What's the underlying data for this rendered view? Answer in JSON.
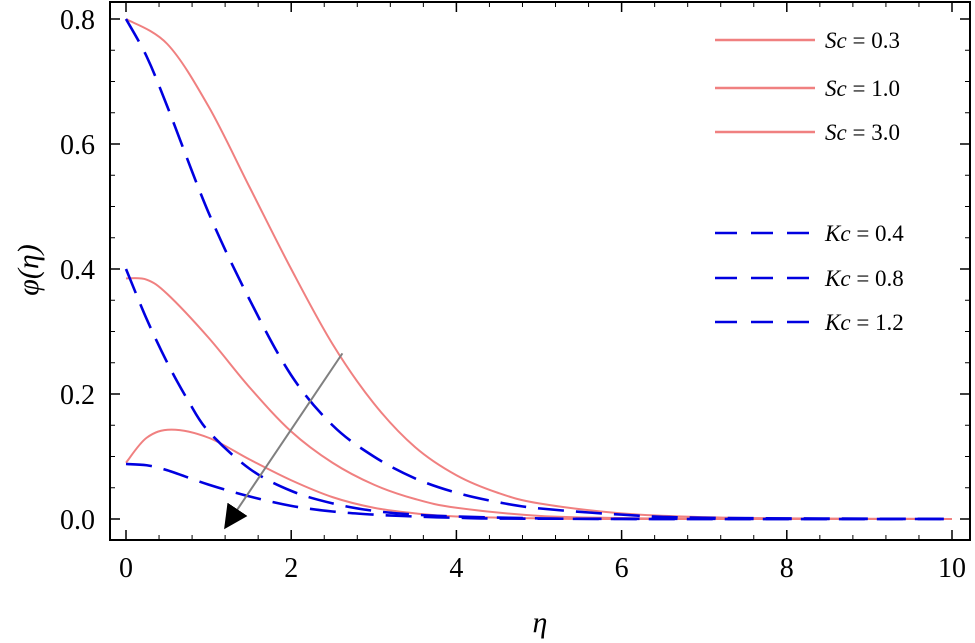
{
  "chart_data": {
    "type": "line",
    "xlabel": "η",
    "ylabel": "φ(η)",
    "xlim": [
      0,
      10
    ],
    "ylim": [
      -0.03,
      0.81
    ],
    "xticks": [
      "0",
      "2",
      "4",
      "6",
      "8",
      "10"
    ],
    "yticks": [
      "0.0",
      "0.2",
      "0.4",
      "0.6",
      "0.8"
    ],
    "grid": false,
    "legend_position": "top-right",
    "series": [
      {
        "name": "Sc = 0.3",
        "group": "Sc",
        "style": "solid",
        "color": "#f08080",
        "x": [
          0,
          0.5,
          1,
          1.5,
          2,
          2.5,
          3,
          3.5,
          4,
          4.5,
          5,
          6,
          7,
          8,
          10
        ],
        "y": [
          0.8,
          0.76,
          0.66,
          0.53,
          0.4,
          0.28,
          0.185,
          0.115,
          0.07,
          0.042,
          0.025,
          0.009,
          0.003,
          0.001,
          0.0
        ]
      },
      {
        "name": "Sc = 1.0",
        "group": "Sc",
        "style": "solid",
        "color": "#f08080",
        "x": [
          0,
          0.25,
          0.5,
          1,
          1.5,
          2,
          2.5,
          3,
          3.5,
          4,
          5,
          6,
          7,
          10
        ],
        "y": [
          0.385,
          0.383,
          0.36,
          0.29,
          0.21,
          0.14,
          0.09,
          0.055,
          0.032,
          0.018,
          0.005,
          0.0015,
          0.0005,
          0.0
        ]
      },
      {
        "name": "Sc = 3.0",
        "group": "Sc",
        "style": "solid",
        "color": "#f08080",
        "x": [
          0,
          0.25,
          0.55,
          1,
          1.5,
          2,
          2.5,
          3,
          3.5,
          4,
          5,
          6,
          10
        ],
        "y": [
          0.09,
          0.13,
          0.143,
          0.13,
          0.095,
          0.062,
          0.035,
          0.018,
          0.009,
          0.004,
          0.001,
          0.0,
          0.0
        ]
      },
      {
        "name": "Kc = 0.4",
        "group": "Kc",
        "style": "dashed",
        "color": "#0000e0",
        "x": [
          0,
          0.25,
          0.5,
          1,
          1.5,
          2,
          2.5,
          3,
          3.5,
          4,
          4.5,
          5,
          6,
          7,
          10
        ],
        "y": [
          0.8,
          0.74,
          0.66,
          0.49,
          0.35,
          0.23,
          0.15,
          0.1,
          0.065,
          0.042,
          0.027,
          0.017,
          0.007,
          0.002,
          0.0
        ]
      },
      {
        "name": "Kc = 0.8",
        "group": "Kc",
        "style": "dashed",
        "color": "#0000e0",
        "x": [
          0,
          0.25,
          0.5,
          0.75,
          1,
          1.5,
          2,
          2.5,
          3,
          3.5,
          4,
          5,
          6,
          10
        ],
        "y": [
          0.4,
          0.32,
          0.25,
          0.19,
          0.14,
          0.08,
          0.045,
          0.025,
          0.013,
          0.007,
          0.004,
          0.001,
          0.0,
          0.0
        ]
      },
      {
        "name": "Kc = 1.2",
        "group": "Kc",
        "style": "dashed",
        "color": "#0000e0",
        "x": [
          0,
          0.25,
          0.5,
          1,
          1.5,
          2,
          2.5,
          3,
          3.5,
          4,
          5,
          10
        ],
        "y": [
          0.088,
          0.086,
          0.078,
          0.055,
          0.036,
          0.021,
          0.012,
          0.007,
          0.004,
          0.002,
          0.0005,
          0.0
        ]
      }
    ],
    "annotations": [
      {
        "type": "arrow",
        "from": [
          2.62,
          0.265
        ],
        "to": [
          1.22,
          -0.01
        ],
        "color": "#808080"
      }
    ]
  }
}
